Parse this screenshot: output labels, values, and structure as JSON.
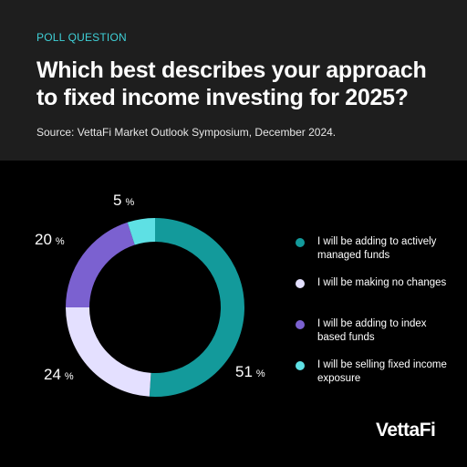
{
  "header": {
    "eyebrow": "POLL QUESTION",
    "title": "Which best describes your approach to fixed income investing for 2025?",
    "source": "Source: VettaFi Market Outlook Symposium, December 2024."
  },
  "brand": {
    "logo_text": "VettaFi",
    "accent": "#3fd0d7",
    "header_bg": "#1e1e1e",
    "background": "#000000"
  },
  "chart_data": {
    "type": "pie",
    "style": "donut",
    "legend_position": "right",
    "unit": "%",
    "slices": [
      {
        "label": "I will be adding to actively managed funds",
        "value": 51,
        "color": "#139a9b"
      },
      {
        "label": "I will be making no changes",
        "value": 24,
        "color": "#e4e0ff"
      },
      {
        "label": "I will be adding to index based funds",
        "value": 20,
        "color": "#7b61d0"
      },
      {
        "label": "I will be selling fixed income exposure",
        "value": 5,
        "color": "#5ee0e4"
      }
    ]
  }
}
